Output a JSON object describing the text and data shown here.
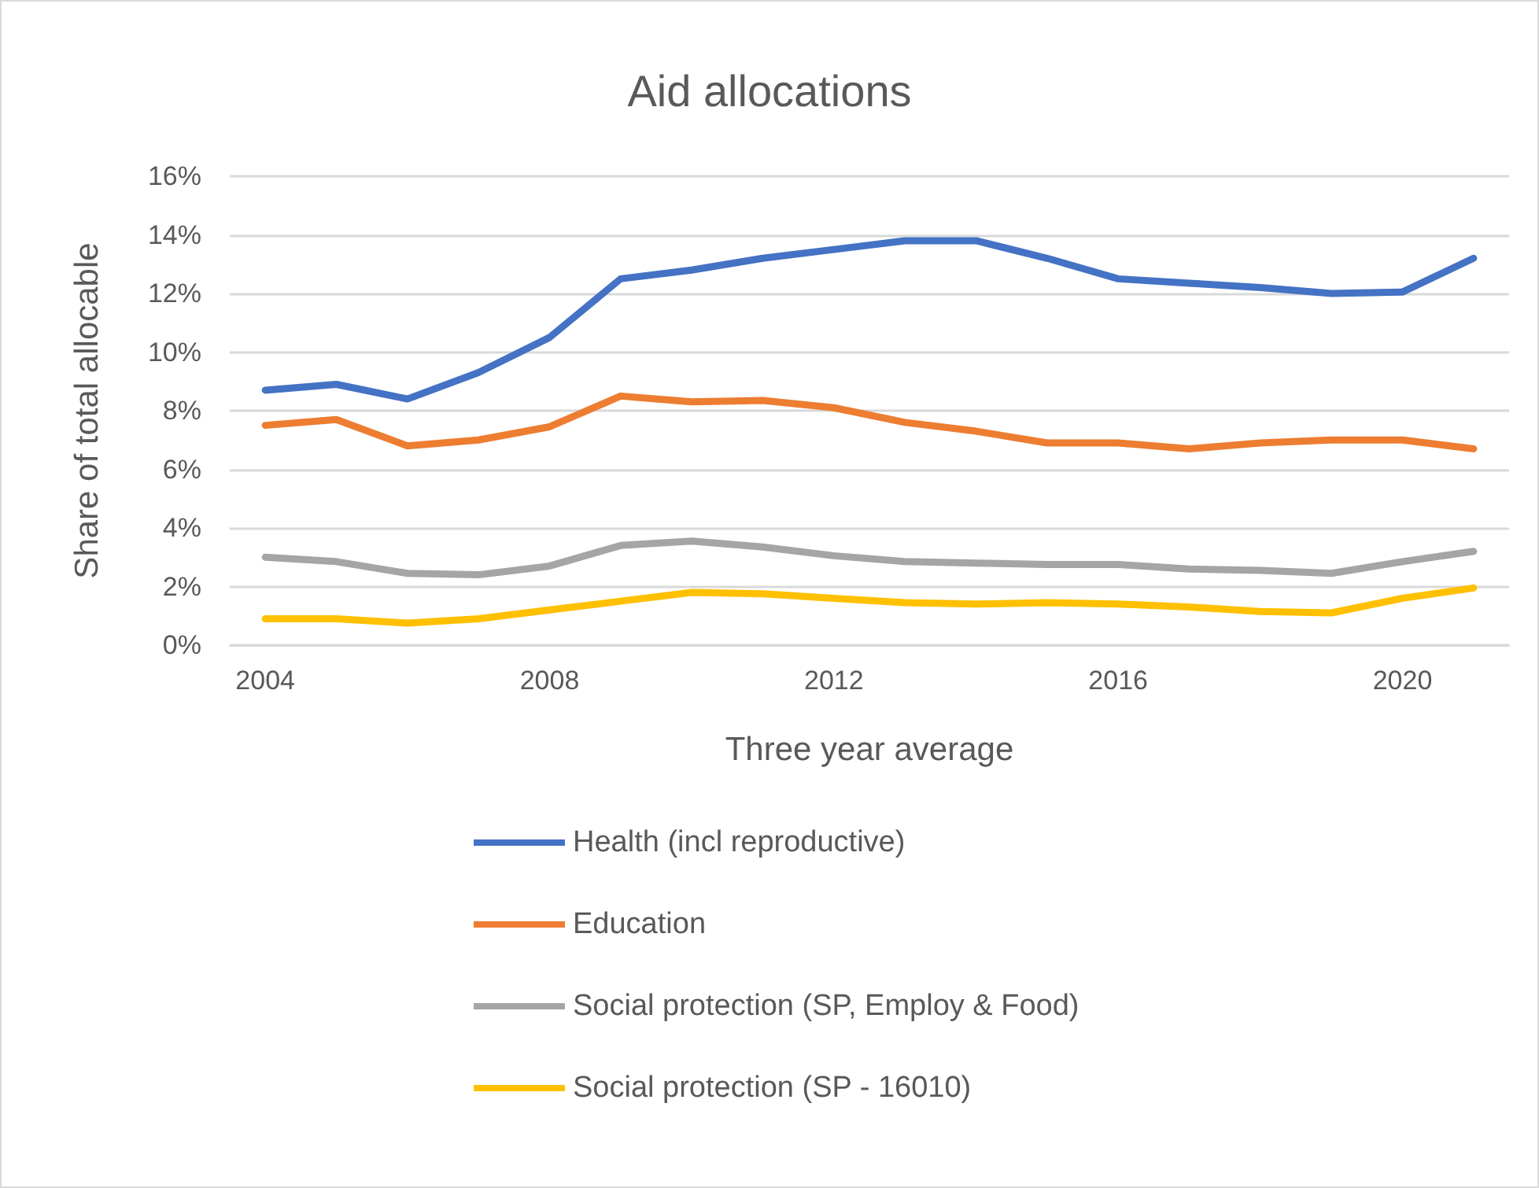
{
  "chart_data": {
    "type": "line",
    "title": "Aid allocations",
    "xlabel": "Three year average",
    "ylabel": "Share of total allocable",
    "categories": [
      "2004",
      null,
      null,
      null,
      "2008",
      null,
      null,
      null,
      "2012",
      null,
      null,
      null,
      "2016",
      null,
      null,
      null,
      "2020",
      null
    ],
    "series": [
      {
        "name": "Health (incl reproductive)",
        "color": "#4472c4",
        "values": [
          8.7,
          8.9,
          8.4,
          9.3,
          10.5,
          12.5,
          12.8,
          13.2,
          13.5,
          13.8,
          13.8,
          13.2,
          12.5,
          12.35,
          12.2,
          12.0,
          12.05,
          13.2
        ]
      },
      {
        "name": "Education",
        "color": "#ed7d31",
        "values": [
          7.5,
          7.7,
          6.8,
          7.0,
          7.45,
          8.5,
          8.3,
          8.35,
          8.1,
          7.6,
          7.3,
          6.9,
          6.9,
          6.7,
          6.9,
          7.0,
          7.0,
          6.7
        ]
      },
      {
        "name": "Social protection (SP, Employ & Food)",
        "color": "#a5a5a5",
        "values": [
          3.0,
          2.85,
          2.45,
          2.4,
          2.7,
          3.4,
          3.55,
          3.35,
          3.05,
          2.85,
          2.8,
          2.75,
          2.75,
          2.6,
          2.55,
          2.45,
          2.85,
          3.2
        ]
      },
      {
        "name": "Social protection (SP - 16010)",
        "color": "#ffc000",
        "values": [
          0.9,
          0.9,
          0.75,
          0.9,
          1.2,
          1.5,
          1.8,
          1.75,
          1.6,
          1.45,
          1.4,
          1.45,
          1.4,
          1.3,
          1.15,
          1.1,
          1.6,
          1.95
        ]
      }
    ],
    "ylim": [
      0,
      16
    ],
    "yticks": [
      {
        "value": 0,
        "label": "0%"
      },
      {
        "value": 2,
        "label": "2%"
      },
      {
        "value": 4,
        "label": "4%"
      },
      {
        "value": 6,
        "label": "6%"
      },
      {
        "value": 8,
        "label": "8%"
      },
      {
        "value": 10,
        "label": "10%"
      },
      {
        "value": 12,
        "label": "12%"
      },
      {
        "value": 14,
        "label": "14%"
      },
      {
        "value": 16,
        "label": "16%"
      }
    ],
    "grid": "y",
    "legend": "bottom",
    "marker": "none",
    "line_style": "solid"
  }
}
